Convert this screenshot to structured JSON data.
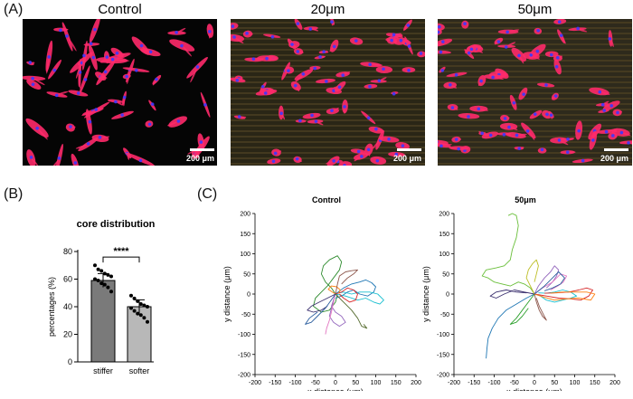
{
  "panel_a": {
    "letter": "(A)",
    "images": [
      {
        "title": "Control",
        "scale_label": "200 μm",
        "background": "#050505",
        "stripes": false
      },
      {
        "title": "20μm",
        "scale_label": "200 μm",
        "background": "#2a2616",
        "stripes": true
      },
      {
        "title": "50μm",
        "scale_label": "200 μm",
        "background": "#2e2a1c",
        "stripes": true
      }
    ],
    "colors": {
      "cell": "#ff2a6a",
      "nucleus": "#3a3aff",
      "stripe": "#4a3f22"
    }
  },
  "panel_b": {
    "letter": "(B)",
    "significance": "****"
  },
  "panel_c": {
    "letter": "(C)"
  },
  "chart_data": [
    {
      "type": "bar",
      "title": "core distribution",
      "ylabel": "percentages (%)",
      "xlabel": "",
      "categories": [
        "stiffer",
        "softer"
      ],
      "values": [
        59,
        40
      ],
      "errors": [
        5,
        5
      ],
      "ylim": [
        0,
        80
      ],
      "yticks": [
        0,
        20,
        40,
        60,
        80
      ],
      "bar_colors": [
        "#7a7a7a",
        "#b8b8b8"
      ],
      "points": [
        [
          70,
          67,
          66,
          64,
          63,
          62,
          60,
          59,
          57,
          56,
          54,
          51
        ],
        [
          48,
          46,
          44,
          42,
          41,
          40,
          39,
          37,
          35,
          34,
          32,
          29
        ]
      ],
      "annotation": "****",
      "grid": false
    },
    {
      "type": "line",
      "title": "Control",
      "xlabel": "x distance (μm)",
      "ylabel": "y distance (μm)",
      "xlim": [
        -200,
        200
      ],
      "ylim": [
        -200,
        200
      ],
      "xticks": [
        -200,
        -150,
        -100,
        -50,
        0,
        50,
        100,
        150,
        200
      ],
      "yticks": [
        -200,
        -150,
        -100,
        -50,
        0,
        50,
        100,
        150,
        200
      ],
      "grid": false,
      "tracks": [
        {
          "color": "#2e8b2e",
          "points": [
            [
              0,
              0
            ],
            [
              -10,
              15
            ],
            [
              -25,
              30
            ],
            [
              -35,
              50
            ],
            [
              -30,
              70
            ],
            [
              -15,
              85
            ],
            [
              5,
              95
            ],
            [
              15,
              80
            ],
            [
              10,
              60
            ],
            [
              -5,
              40
            ],
            [
              -20,
              20
            ],
            [
              -35,
              5
            ],
            [
              -50,
              -10
            ],
            [
              -55,
              -30
            ],
            [
              -35,
              -45
            ],
            [
              -15,
              -40
            ],
            [
              0,
              -20
            ],
            [
              5,
              0
            ]
          ]
        },
        {
          "color": "#1f77b4",
          "points": [
            [
              0,
              0
            ],
            [
              20,
              15
            ],
            [
              40,
              25
            ],
            [
              60,
              30
            ],
            [
              75,
              35
            ],
            [
              90,
              28
            ],
            [
              100,
              18
            ],
            [
              95,
              5
            ],
            [
              80,
              -5
            ],
            [
              60,
              0
            ],
            [
              45,
              10
            ],
            [
              30,
              5
            ],
            [
              15,
              -5
            ],
            [
              0,
              -10
            ]
          ]
        },
        {
          "color": "#17becf",
          "points": [
            [
              0,
              0
            ],
            [
              25,
              -5
            ],
            [
              55,
              -15
            ],
            [
              75,
              -10
            ],
            [
              95,
              -20
            ],
            [
              110,
              -25
            ],
            [
              120,
              -15
            ],
            [
              105,
              0
            ],
            [
              85,
              5
            ],
            [
              60,
              5
            ],
            [
              40,
              0
            ],
            [
              20,
              5
            ],
            [
              5,
              2
            ]
          ]
        },
        {
          "color": "#9467bd",
          "points": [
            [
              0,
              0
            ],
            [
              -5,
              -15
            ],
            [
              -10,
              -30
            ],
            [
              0,
              -45
            ],
            [
              15,
              -55
            ],
            [
              25,
              -70
            ],
            [
              10,
              -80
            ],
            [
              -5,
              -70
            ],
            [
              -15,
              -55
            ],
            [
              -10,
              -35
            ],
            [
              -5,
              -20
            ]
          ]
        },
        {
          "color": "#d62728",
          "points": [
            [
              0,
              0
            ],
            [
              15,
              5
            ],
            [
              30,
              15
            ],
            [
              45,
              10
            ],
            [
              55,
              0
            ],
            [
              50,
              -15
            ],
            [
              35,
              -20
            ],
            [
              20,
              -10
            ],
            [
              10,
              0
            ]
          ]
        },
        {
          "color": "#ff7f0e",
          "points": [
            [
              0,
              0
            ],
            [
              -8,
              5
            ],
            [
              -18,
              12
            ],
            [
              -10,
              20
            ],
            [
              3,
              18
            ],
            [
              12,
              10
            ],
            [
              8,
              2
            ]
          ]
        },
        {
          "color": "#e377c2",
          "points": [
            [
              0,
              0
            ],
            [
              -5,
              -20
            ],
            [
              -10,
              -45
            ],
            [
              -15,
              -65
            ],
            [
              -22,
              -85
            ],
            [
              -25,
              -100
            ]
          ]
        },
        {
          "color": "#3a2f6e",
          "points": [
            [
              0,
              0
            ],
            [
              -20,
              -10
            ],
            [
              -40,
              -20
            ],
            [
              -60,
              -30
            ],
            [
              -70,
              -40
            ],
            [
              -55,
              -45
            ],
            [
              -35,
              -40
            ],
            [
              -20,
              -30
            ]
          ]
        },
        {
          "color": "#556b2f",
          "points": [
            [
              0,
              0
            ],
            [
              20,
              -20
            ],
            [
              40,
              -40
            ],
            [
              55,
              -60
            ],
            [
              65,
              -80
            ],
            [
              78,
              -85
            ],
            [
              70,
              -75
            ]
          ]
        },
        {
          "color": "#8c564b",
          "points": [
            [
              0,
              0
            ],
            [
              5,
              25
            ],
            [
              10,
              45
            ],
            [
              25,
              55
            ],
            [
              40,
              58
            ],
            [
              55,
              60
            ],
            [
              45,
              50
            ],
            [
              30,
              40
            ],
            [
              15,
              25
            ]
          ]
        },
        {
          "color": "#2b5e9e",
          "points": [
            [
              0,
              0
            ],
            [
              -25,
              -35
            ],
            [
              -45,
              -55
            ],
            [
              -60,
              -70
            ],
            [
              -75,
              -75
            ],
            [
              -65,
              -60
            ],
            [
              -45,
              -45
            ]
          ]
        }
      ]
    },
    {
      "type": "line",
      "title": "50μm",
      "xlabel": "x distance (μm)",
      "ylabel": "y distance (μm)",
      "xlim": [
        -200,
        200
      ],
      "ylim": [
        -200,
        200
      ],
      "xticks": [
        -200,
        -150,
        -100,
        -50,
        0,
        50,
        100,
        150,
        200
      ],
      "yticks": [
        -200,
        -150,
        -100,
        -50,
        0,
        50,
        100,
        150,
        200
      ],
      "grid": false,
      "tracks": [
        {
          "color": "#6abf3a",
          "points": [
            [
              0,
              0
            ],
            [
              -10,
              15
            ],
            [
              -25,
              25
            ],
            [
              -40,
              30
            ],
            [
              -60,
              20
            ],
            [
              -80,
              25
            ],
            [
              -100,
              30
            ],
            [
              -115,
              40
            ],
            [
              -130,
              45
            ],
            [
              -120,
              60
            ],
            [
              -95,
              65
            ],
            [
              -75,
              70
            ],
            [
              -60,
              85
            ],
            [
              -55,
              110
            ],
            [
              -45,
              140
            ],
            [
              -40,
              170
            ],
            [
              -45,
              195
            ],
            [
              -55,
              200
            ],
            [
              -65,
              195
            ]
          ]
        },
        {
          "color": "#1f77b4",
          "points": [
            [
              0,
              0
            ],
            [
              -20,
              -10
            ],
            [
              -45,
              -25
            ],
            [
              -70,
              -40
            ],
            [
              -90,
              -60
            ],
            [
              -105,
              -85
            ],
            [
              -115,
              -110
            ],
            [
              -118,
              -135
            ],
            [
              -120,
              -160
            ]
          ]
        },
        {
          "color": "#17becf",
          "points": [
            [
              0,
              0
            ],
            [
              15,
              -5
            ],
            [
              30,
              -15
            ],
            [
              50,
              -20
            ],
            [
              70,
              -15
            ],
            [
              90,
              -10
            ],
            [
              105,
              -5
            ],
            [
              90,
              5
            ],
            [
              70,
              10
            ],
            [
              50,
              5
            ],
            [
              30,
              2
            ],
            [
              10,
              3
            ]
          ]
        },
        {
          "color": "#9467bd",
          "points": [
            [
              0,
              0
            ],
            [
              10,
              20
            ],
            [
              25,
              40
            ],
            [
              40,
              55
            ],
            [
              50,
              70
            ],
            [
              60,
              60
            ],
            [
              55,
              45
            ],
            [
              45,
              30
            ],
            [
              30,
              15
            ]
          ]
        },
        {
          "color": "#d62728",
          "points": [
            [
              0,
              0
            ],
            [
              30,
              -5
            ],
            [
              60,
              -10
            ],
            [
              90,
              -12
            ],
            [
              115,
              -15
            ],
            [
              135,
              -5
            ],
            [
              145,
              10
            ],
            [
              130,
              15
            ],
            [
              110,
              10
            ],
            [
              85,
              5
            ],
            [
              55,
              3
            ],
            [
              25,
              2
            ]
          ]
        },
        {
          "color": "#ff7f0e",
          "points": [
            [
              0,
              0
            ],
            [
              25,
              -8
            ],
            [
              50,
              -15
            ],
            [
              80,
              -12
            ],
            [
              110,
              -10
            ],
            [
              140,
              -15
            ],
            [
              150,
              0
            ],
            [
              130,
              5
            ],
            [
              100,
              5
            ],
            [
              70,
              5
            ],
            [
              40,
              2
            ]
          ]
        },
        {
          "color": "#e377c2",
          "points": [
            [
              0,
              0
            ],
            [
              20,
              15
            ],
            [
              45,
              30
            ],
            [
              65,
              50
            ],
            [
              80,
              45
            ],
            [
              72,
              30
            ],
            [
              58,
              20
            ],
            [
              40,
              10
            ]
          ]
        },
        {
          "color": "#2ca02c",
          "points": [
            [
              0,
              0
            ],
            [
              -15,
              -20
            ],
            [
              -30,
              -40
            ],
            [
              -45,
              -60
            ],
            [
              -60,
              -75
            ],
            [
              -45,
              -70
            ],
            [
              -30,
              -55
            ],
            [
              -15,
              -35
            ]
          ]
        },
        {
          "color": "#3a2f6e",
          "points": [
            [
              0,
              0
            ],
            [
              -25,
              5
            ],
            [
              -50,
              10
            ],
            [
              -75,
              0
            ],
            [
              -95,
              -10
            ],
            [
              -110,
              -5
            ],
            [
              -95,
              5
            ],
            [
              -70,
              10
            ],
            [
              -45,
              5
            ],
            [
              -20,
              3
            ]
          ]
        },
        {
          "color": "#8c564b",
          "points": [
            [
              0,
              0
            ],
            [
              5,
              -20
            ],
            [
              12,
              -40
            ],
            [
              20,
              -55
            ],
            [
              30,
              -65
            ],
            [
              22,
              -50
            ],
            [
              12,
              -30
            ],
            [
              5,
              -10
            ]
          ]
        },
        {
          "color": "#bcbd22",
          "points": [
            [
              0,
              0
            ],
            [
              -10,
              20
            ],
            [
              -20,
              40
            ],
            [
              -15,
              60
            ],
            [
              -5,
              75
            ],
            [
              5,
              85
            ],
            [
              10,
              70
            ],
            [
              5,
              50
            ],
            [
              0,
              30
            ]
          ]
        },
        {
          "color": "#2b5e9e",
          "points": [
            [
              0,
              0
            ],
            [
              25,
              20
            ],
            [
              45,
              40
            ],
            [
              60,
              55
            ],
            [
              75,
              40
            ],
            [
              65,
              25
            ],
            [
              45,
              15
            ],
            [
              25,
              8
            ]
          ]
        }
      ]
    }
  ]
}
